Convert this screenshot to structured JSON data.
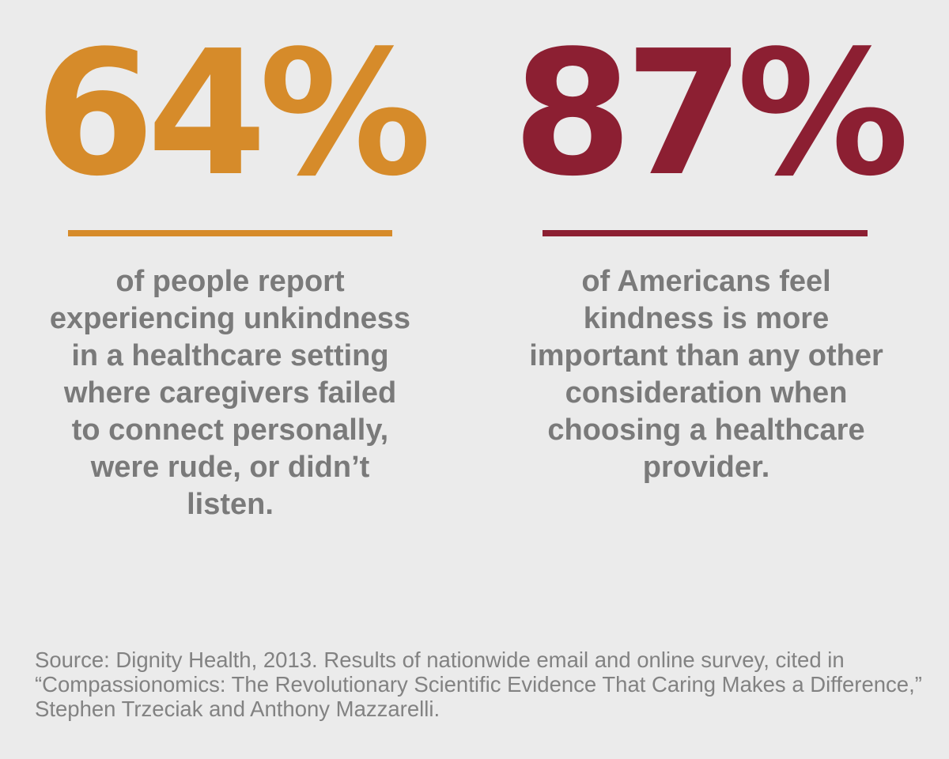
{
  "colors": {
    "background": "#ebebeb",
    "accent_orange": "#d68b2a",
    "accent_red": "#8c1f32",
    "body_text": "#7a7a7a"
  },
  "stats": [
    {
      "value": "64%",
      "description": "of people report experiencing unkindness in a healthcare setting where caregivers failed to connect personally, were rude, or didn’t listen.",
      "color": "#d68b2a"
    },
    {
      "value": "87%",
      "description": "of Americans feel kindness is more important than any other consideration when choosing a healthcare provider.",
      "color": "#8c1f32"
    }
  ],
  "source": {
    "text": "Source: Dignity Health, 2013. Results of nationwide email and online survey, cited in “Compassionomics: The Revolutionary Scientific Evidence That Caring Makes a Difference,” Stephen Trzeciak and Anthony Mazzarelli."
  }
}
